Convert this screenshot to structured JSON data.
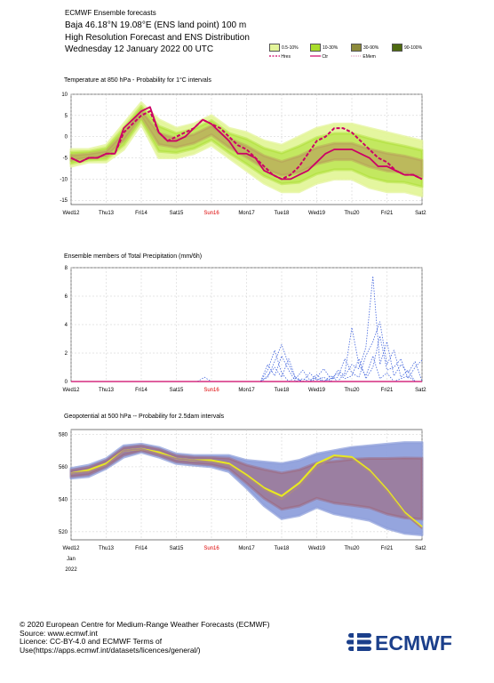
{
  "header": {
    "title": "ECMWF Ensemble forecasts",
    "location": "Baja 46.18°N 19.08°E (ENS land point) 100 m",
    "description": "High Resolution Forecast and ENS Distribution",
    "date": "Wednesday 12 January 2022 00 UTC"
  },
  "legend": {
    "bands": [
      {
        "label": "0.5-10%",
        "color": "#e3f59a"
      },
      {
        "label": "10-30%",
        "color": "#a8dd2b"
      },
      {
        "label": "30-90%",
        "color": "#8c8a3a"
      },
      {
        "label": "90-100%",
        "color": "#4e6a10"
      }
    ],
    "lines": [
      {
        "label": "Hres",
        "color": "#cc0066"
      },
      {
        "label": "Ctr",
        "color": "#cc0066"
      },
      {
        "label": "EMem",
        "color": "#cc6699"
      }
    ]
  },
  "chart_data": [
    {
      "type": "line",
      "title": "Temperature at 850 hPa - Probability for 1°C intervals",
      "x_labels": [
        "Wed12",
        "Thu13",
        "Fri14",
        "Sat15",
        "Sun16",
        "Mon17",
        "Tue18",
        "Wed19",
        "Thu20",
        "Fri21",
        "Sat22"
      ],
      "highlight_label": "Sun16",
      "highlight_color": "#dd0000",
      "ylim": [
        -16,
        10
      ],
      "yticks": [
        10,
        5,
        0,
        -5,
        -10,
        -15
      ],
      "grid": true,
      "band_color": "#e3f59a",
      "band_mid_color": "#a8dd2b",
      "band_inner_color": "#b89a5a",
      "series": [
        {
          "name": "Hres",
          "style": "dashed",
          "color": "#cc0066",
          "x": [
            0,
            0.25,
            0.5,
            0.75,
            1,
            1.25,
            1.5,
            1.75,
            2,
            2.25,
            2.5,
            2.75,
            3,
            3.25,
            3.5,
            3.75,
            4,
            4.25,
            4.5,
            4.75,
            5,
            5.25,
            5.5,
            5.75,
            6,
            6.25,
            6.5,
            6.75,
            7,
            7.25,
            7.5,
            7.75,
            8,
            8.25,
            8.5,
            8.75,
            9,
            9.25,
            9.5,
            9.75,
            10
          ],
          "y": [
            -5,
            -6,
            -5,
            -5,
            -4,
            -4,
            1,
            3,
            5,
            6,
            1,
            -1,
            0,
            1,
            2,
            4,
            3,
            2,
            0,
            -2,
            -3,
            -5,
            -7,
            -9,
            -10,
            -9,
            -7,
            -4,
            -1,
            0,
            2,
            2,
            1,
            -1,
            -3,
            -5,
            -6,
            -8,
            -9,
            -9,
            -10
          ]
        },
        {
          "name": "Ctr",
          "style": "solid",
          "color": "#cc0066",
          "x": [
            0,
            0.25,
            0.5,
            0.75,
            1,
            1.25,
            1.5,
            1.75,
            2,
            2.25,
            2.5,
            2.75,
            3,
            3.25,
            3.5,
            3.75,
            4,
            4.25,
            4.5,
            4.75,
            5,
            5.25,
            5.5,
            5.75,
            6,
            6.25,
            6.5,
            6.75,
            7,
            7.25,
            7.5,
            7.75,
            8,
            8.25,
            8.5,
            8.75,
            9,
            9.25,
            9.5,
            9.75,
            10
          ],
          "y": [
            -5,
            -6,
            -5,
            -5,
            -4,
            -4,
            2,
            4,
            6,
            7,
            1,
            -1,
            -1,
            0,
            2,
            4,
            3,
            1,
            -1,
            -4,
            -4,
            -5,
            -8,
            -9,
            -10,
            -10,
            -9,
            -8,
            -6,
            -4,
            -3,
            -3,
            -3,
            -4,
            -5,
            -7,
            -7,
            -8,
            -9,
            -9,
            -10
          ]
        }
      ],
      "band": {
        "x": [
          0,
          0.5,
          1,
          1.5,
          2,
          2.5,
          3,
          3.5,
          4,
          4.5,
          5,
          5.5,
          6,
          6.5,
          7,
          7.5,
          8,
          8.5,
          9,
          9.5,
          10
        ],
        "low": [
          -7,
          -6,
          -6,
          -3,
          3,
          -5,
          -5,
          -4,
          -2,
          -5,
          -8,
          -11,
          -13,
          -13,
          -11,
          -10,
          -10,
          -12,
          -13,
          -13,
          -14
        ],
        "high": [
          -3,
          -3,
          -2,
          3,
          8,
          4,
          2,
          3,
          5,
          2,
          1,
          -1,
          -2,
          0,
          2,
          3,
          3,
          2,
          1,
          0,
          -1
        ]
      }
    },
    {
      "type": "line",
      "title": "Ensemble members of Total Precipitation (mm/6h)",
      "x_labels": [
        "Wed12",
        "Thu13",
        "Fri14",
        "Sat15",
        "Sun16",
        "Mon17",
        "Tue18",
        "Wed19",
        "Thu20",
        "Fri21",
        "Sat22"
      ],
      "highlight_label": "Sun16",
      "highlight_color": "#dd0000",
      "ylim": [
        0,
        8
      ],
      "yticks": [
        8,
        6,
        4,
        2,
        0
      ],
      "grid": true,
      "series": [
        {
          "name": "member-a",
          "style": "dotted",
          "color": "#4466dd",
          "x": [
            5.4,
            5.6,
            5.8,
            6,
            6.2,
            6.4,
            6.6,
            6.8,
            7,
            7.2,
            7.4,
            7.6,
            7.8,
            8,
            8.2,
            8.4,
            8.6,
            8.8,
            9,
            9.2,
            9.4,
            9.6,
            9.8,
            10
          ],
          "y": [
            0,
            0.8,
            2.2,
            0.6,
            0,
            0.3,
            0,
            0,
            0.2,
            0,
            0.4,
            0,
            0.6,
            3.8,
            1.2,
            0.4,
            1.8,
            0.2,
            0.6,
            0,
            0.2,
            0.4,
            0,
            0
          ]
        },
        {
          "name": "member-b",
          "style": "dotted",
          "color": "#4466dd",
          "x": [
            5.4,
            5.6,
            5.8,
            6,
            6.2,
            6.4,
            6.6,
            6.8,
            7,
            7.2,
            7.4,
            7.6,
            7.8,
            8,
            8.2,
            8.4,
            8.6,
            8.8,
            9,
            9.2,
            9.4,
            9.6,
            9.8,
            10
          ],
          "y": [
            0,
            0.3,
            1.4,
            2.6,
            1.2,
            0.2,
            0,
            0.6,
            0.1,
            0.3,
            0,
            0.8,
            0.4,
            1.2,
            0.9,
            2.4,
            7.4,
            1.2,
            2.8,
            0.4,
            1.2,
            0.6,
            1.4,
            0
          ]
        },
        {
          "name": "member-c",
          "style": "dotted",
          "color": "#4466dd",
          "x": [
            5.4,
            5.6,
            5.8,
            6,
            6.2,
            6.4,
            6.6,
            6.8,
            7,
            7.2,
            7.4,
            7.6,
            7.8,
            8,
            8.2,
            8.4,
            8.6,
            8.8,
            9,
            9.2,
            9.4,
            9.6,
            9.8,
            10
          ],
          "y": [
            0,
            1.2,
            0.4,
            1.8,
            0.8,
            0,
            0.2,
            0,
            0.5,
            0,
            0.2,
            0.3,
            1.6,
            0.6,
            0.3,
            1.8,
            2.8,
            4.2,
            1.2,
            2.2,
            0.3,
            0.8,
            0,
            0
          ]
        },
        {
          "name": "member-d",
          "style": "dotted",
          "color": "#4466dd",
          "x": [
            3.6,
            3.8,
            4,
            5.4,
            5.6,
            5.8,
            6,
            6.2,
            6.4,
            6.6,
            6.8,
            7,
            7.2,
            7.4,
            7.6,
            7.8,
            8,
            8.2,
            8.4,
            8.6,
            8.8,
            9,
            9.2,
            9.4,
            9.6,
            9.8,
            10
          ],
          "y": [
            0,
            0.3,
            0,
            0,
            0.4,
            1.0,
            0.3,
            1.6,
            0.2,
            0.8,
            0.1,
            0.3,
            0.9,
            0.2,
            0.6,
            0.2,
            0.4,
            1.6,
            0.2,
            1.0,
            3.2,
            0.8,
            1.0,
            1.6,
            0.2,
            1.0,
            1.5
          ]
        }
      ]
    },
    {
      "type": "line",
      "title": "Geopotential at 500 hPa -- Probability for 2.5dam intervals",
      "x_labels": [
        "Wed12",
        "Thu13",
        "Fri14",
        "Sat15",
        "Sun16",
        "Mon17",
        "Tue18",
        "Wed19",
        "Thu20",
        "Fri21",
        "Sat22"
      ],
      "x_sublabels": [
        "Jan",
        "2022"
      ],
      "highlight_label": "Sun16",
      "highlight_color": "#dd0000",
      "ylim": [
        515,
        583
      ],
      "yticks": [
        580,
        560,
        540,
        520
      ],
      "grid": true,
      "band_color": "#8fa0dc",
      "band_mid_color": "#a06070",
      "series": [
        {
          "name": "Hres",
          "style": "solid",
          "color": "#e8e820",
          "x": [
            0,
            0.5,
            1,
            1.5,
            2,
            2.5,
            3,
            3.5,
            4,
            4.5,
            5,
            5.5,
            6,
            6.5,
            7,
            7.5,
            8,
            8.5,
            9,
            9.5,
            10
          ],
          "y": [
            556,
            558,
            562,
            570,
            571,
            569,
            565,
            564,
            564,
            562,
            555,
            547,
            542,
            550,
            562,
            567,
            566,
            558,
            546,
            532,
            523
          ]
        },
        {
          "name": "Ctr",
          "style": "solid",
          "color": "#aa8888",
          "x": [
            0,
            0.5,
            1,
            1.5,
            2,
            2.5,
            3,
            3.5,
            4,
            4.5,
            5,
            5.5,
            6,
            6.5,
            7,
            7.5,
            8,
            8.5,
            9,
            9.5,
            10
          ],
          "y": [
            556,
            557,
            561,
            570,
            571,
            568,
            565,
            564,
            563,
            561,
            554,
            546,
            540,
            548,
            560,
            566,
            565,
            557,
            545,
            531,
            522
          ]
        }
      ],
      "band": {
        "x": [
          0,
          0.5,
          1,
          1.5,
          2,
          2.5,
          3,
          3.5,
          4,
          4.5,
          5,
          5.5,
          6,
          6.5,
          7,
          7.5,
          8,
          8.5,
          9,
          9.5,
          10
        ],
        "low": [
          553,
          554,
          559,
          566,
          569,
          566,
          562,
          561,
          560,
          557,
          547,
          536,
          528,
          530,
          535,
          531,
          529,
          527,
          522,
          519,
          518
        ],
        "high": [
          559,
          561,
          565,
          573,
          574,
          572,
          568,
          567,
          567,
          567,
          564,
          563,
          562,
          564,
          568,
          570,
          572,
          573,
          574,
          575,
          575
        ]
      }
    }
  ],
  "footer": {
    "copyright": "© 2020 European Centre for Medium-Range Weather Forecasts (ECMWF)",
    "source": "Source: www.ecmwf.int",
    "licence": "Licence: CC-BY-4.0 and ECMWF Terms of Use(https://apps.ecmwf.int/datasets/licences/general/)"
  },
  "logo": {
    "text": "ECMWF",
    "color": "#1b3f8b"
  }
}
